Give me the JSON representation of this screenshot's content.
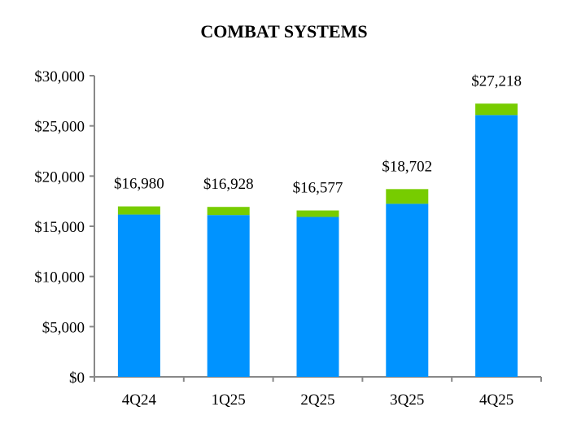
{
  "chart_data": {
    "type": "bar",
    "stacked": true,
    "title": "COMBAT SYSTEMS",
    "categories": [
      "4Q24",
      "1Q25",
      "2Q25",
      "3Q25",
      "4Q25"
    ],
    "series": [
      {
        "color": "#0093ff",
        "values": [
          16170,
          16120,
          15930,
          17240,
          26080
        ]
      },
      {
        "color": "#77cc00",
        "values": [
          810,
          808,
          647,
          1462,
          1138
        ]
      }
    ],
    "totals": [
      16980,
      16928,
      16577,
      18702,
      27218
    ],
    "total_labels": [
      "$16,980",
      "$16,928",
      "$16,577",
      "$18,702",
      "$27,218"
    ],
    "ylim": [
      0,
      30000
    ],
    "yticks": [
      0,
      5000,
      10000,
      15000,
      20000,
      25000,
      30000
    ],
    "ytick_labels": [
      "$0",
      "$5,000",
      "$10,000",
      "$15,000",
      "$20,000",
      "$25,000",
      "$30,000"
    ],
    "xlabel": "",
    "ylabel": "",
    "grid": false,
    "legend": "none"
  }
}
